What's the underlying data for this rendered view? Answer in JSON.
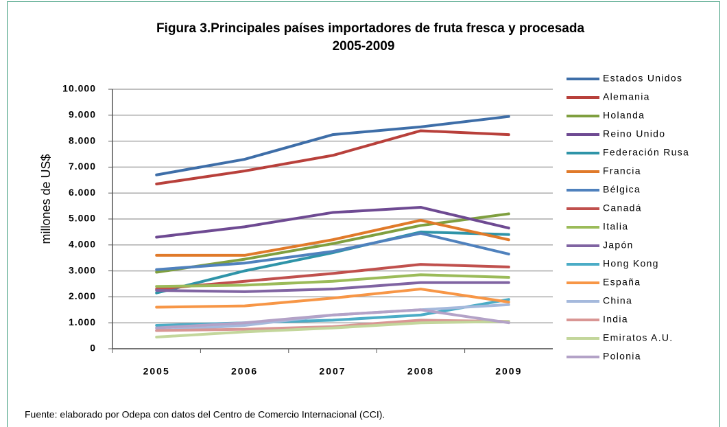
{
  "chart_data": {
    "type": "line",
    "title": "Figura 3.Principales países importadores de fruta fresca y procesada",
    "subtitle": "2005-2009",
    "y_label": "millones de US$",
    "source": "Fuente: elaborado por Odepa con datos del Centro de Comercio Internacional (CCI).",
    "categories": [
      "2005",
      "2006",
      "2007",
      "2008",
      "2009"
    ],
    "ylim": [
      0,
      10000
    ],
    "yticks": [
      0,
      {
        "value": 1000,
        "label": "1.000"
      },
      {
        "value": 2000,
        "label": "2.000"
      },
      {
        "value": 3000,
        "label": "3.000"
      },
      {
        "value": 4000,
        "label": "4.000"
      },
      {
        "value": 5000,
        "label": "5.000"
      },
      {
        "value": 6000,
        "label": "6.000"
      },
      {
        "value": 7000,
        "label": "7.000"
      },
      {
        "value": 8000,
        "label": "8.000"
      },
      {
        "value": 9000,
        "label": "9.000"
      },
      {
        "value": 10000,
        "label": "10.000"
      }
    ],
    "grid": true,
    "legend": "right",
    "series": [
      {
        "name": "Estados Unidos",
        "color": "#3e6ea8",
        "values": [
          6700,
          7300,
          8250,
          8550,
          8950
        ]
      },
      {
        "name": "Alemania",
        "color": "#b8403b",
        "values": [
          6350,
          6850,
          7450,
          8400,
          8250
        ]
      },
      {
        "name": "Holanda",
        "color": "#7f9f3f",
        "values": [
          2950,
          3450,
          4050,
          4750,
          5200
        ]
      },
      {
        "name": "Reino Unido",
        "color": "#6e4a92",
        "values": [
          4300,
          4700,
          5250,
          5450,
          4650
        ]
      },
      {
        "name": "Federación Rusa",
        "color": "#2f94a8",
        "values": [
          2150,
          3000,
          3700,
          4500,
          4400
        ]
      },
      {
        "name": "Francia",
        "color": "#e07a2a",
        "values": [
          3600,
          3600,
          4200,
          4950,
          4200
        ]
      },
      {
        "name": "Bélgica",
        "color": "#4f81bd",
        "values": [
          3050,
          3300,
          3750,
          4450,
          3650
        ]
      },
      {
        "name": "Canadá",
        "color": "#c0504d",
        "values": [
          2300,
          2600,
          2900,
          3250,
          3150
        ]
      },
      {
        "name": "Italia",
        "color": "#9bbb59",
        "values": [
          2400,
          2450,
          2600,
          2850,
          2750
        ]
      },
      {
        "name": "Japón",
        "color": "#8064a2",
        "values": [
          2250,
          2200,
          2300,
          2550,
          2550
        ]
      },
      {
        "name": "Hong Kong",
        "color": "#4bacc6",
        "values": [
          900,
          1000,
          1100,
          1300,
          1900
        ]
      },
      {
        "name": "España",
        "color": "#f79646",
        "values": [
          1600,
          1650,
          1950,
          2300,
          1800
        ]
      },
      {
        "name": "China",
        "color": "#a5b9dc",
        "values": [
          700,
          900,
          1300,
          1500,
          1700
        ]
      },
      {
        "name": "India",
        "color": "#d99694",
        "values": [
          700,
          750,
          850,
          1100,
          1050
        ]
      },
      {
        "name": "Emiratos A.U.",
        "color": "#c3d69b",
        "values": [
          450,
          650,
          800,
          1000,
          1050
        ]
      },
      {
        "name": "Polonia",
        "color": "#b3a2c7",
        "values": [
          800,
          1000,
          1300,
          1500,
          1000
        ]
      }
    ]
  }
}
